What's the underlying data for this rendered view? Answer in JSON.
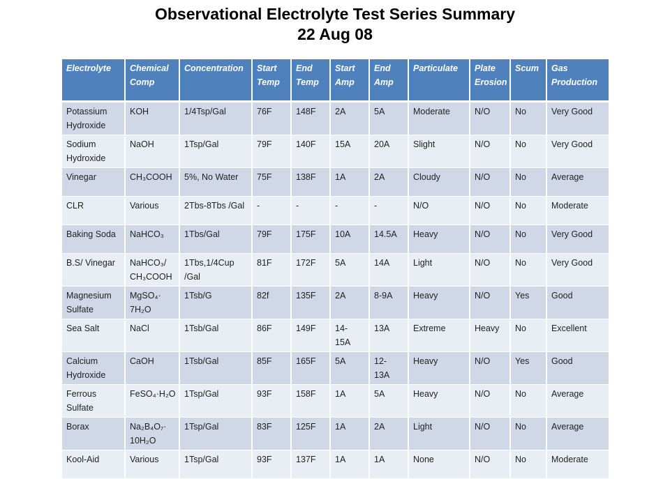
{
  "title_line1": "Observational Electrolyte Test Series Summary",
  "title_line2": "22 Aug 08",
  "colors": {
    "header": "#4f81bd",
    "row_odd": "#d0d8e8",
    "row_even": "#e9edf4"
  },
  "table": {
    "headers": [
      "Electrolyte",
      "Chemical Comp",
      "Concentration",
      "Start Temp",
      "End Temp",
      "Start Amp",
      "End Amp",
      "Particulate",
      "Plate Erosion",
      "Scum",
      "Gas Production"
    ],
    "rows": [
      [
        "Potassium Hydroxide",
        "KOH",
        "1/4Tsp/Gal",
        "76F",
        "148F",
        "2A",
        "5A",
        "Moderate",
        "N/O",
        "No",
        "Very Good"
      ],
      [
        "Sodium Hydroxide",
        "NaOH",
        "1Tsp/Gal",
        "79F",
        "140F",
        "15A",
        "20A",
        "Slight",
        "N/O",
        "No",
        "Very Good"
      ],
      [
        "Vinegar",
        "CH₃COOH",
        "5%, No Water",
        "75F",
        "138F",
        "1A",
        "2A",
        "Cloudy",
        "N/O",
        "No",
        "Average"
      ],
      [
        "CLR",
        "Various",
        "2Tbs-8Tbs /Gal",
        "-",
        "-",
        "-",
        "-",
        "N/O",
        "N/O",
        "No",
        "Moderate"
      ],
      [
        "Baking Soda",
        "NaHCO₃",
        "1Tbs/Gal",
        "79F",
        "175F",
        "10A",
        "14.5A",
        "Heavy",
        "N/O",
        "No",
        "Very Good"
      ],
      [
        "B.S/ Vinegar",
        "NaHCO₃/ CH₃COOH",
        "1Tbs,1/4Cup /Gal",
        "81F",
        "172F",
        "5A",
        "14A",
        "Light",
        "N/O",
        "No",
        "Very Good"
      ],
      [
        "Magnesium Sulfate",
        "MgSO₄· 7H₂O",
        "1Tsb/G",
        "82f",
        "135F",
        "2A",
        "8-9A",
        "Heavy",
        "N/O",
        "Yes",
        "Good"
      ],
      [
        "Sea Salt",
        "NaCl",
        "1Tsb/Gal",
        "86F",
        "149F",
        "14- 15A",
        "13A",
        "Extreme",
        "Heavy",
        "No",
        "Excellent"
      ],
      [
        "Calcium Hydroxide",
        "CaOH",
        "1Tsb/Gal",
        "85F",
        "165F",
        "5A",
        "12- 13A",
        "Heavy",
        "N/O",
        "Yes",
        "Good"
      ],
      [
        "Ferrous Sulfate",
        "FeSO₄·H₂O",
        "1Tsp/Gal",
        "93F",
        "158F",
        "1A",
        "5A",
        "Heavy",
        "N/O",
        "No",
        "Average"
      ],
      [
        "Borax",
        "Na₂B₄O₇· 10H₂O",
        "1Tsp/Gal",
        "83F",
        "125F",
        "1A",
        "2A",
        "Light",
        "N/O",
        "No",
        "Average"
      ],
      [
        "Kool-Aid",
        "Various",
        "1Tsp/Gal",
        "93F",
        "137F",
        "1A",
        "1A",
        "None",
        "N/O",
        "No",
        "Moderate"
      ]
    ]
  }
}
